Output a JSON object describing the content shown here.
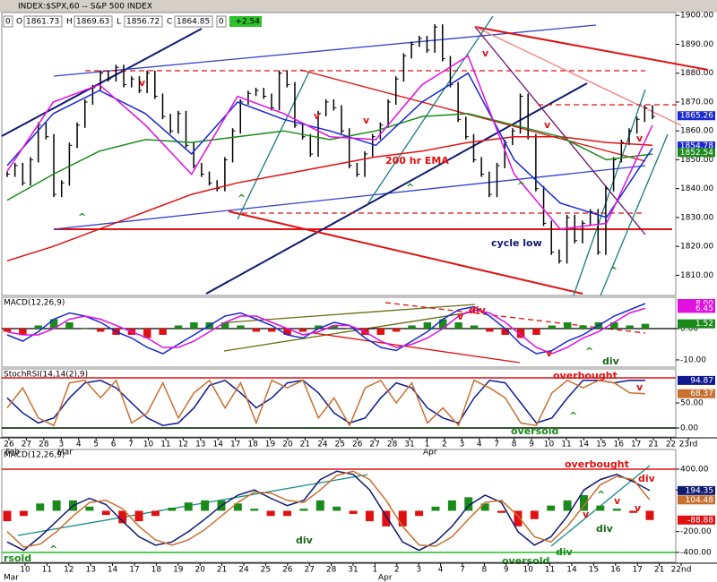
{
  "header": {
    "symbol": "INDEX:$SPX,60 -- S&P 500 INDEX",
    "fields": [
      {
        "label": "O",
        "value": "1861.73"
      },
      {
        "label": "H",
        "value": "1869.63"
      },
      {
        "label": "L",
        "value": "1856.72"
      },
      {
        "label": "C",
        "value": "1864.85"
      }
    ],
    "volume": "0",
    "change": "+2.54"
  },
  "chart_data": [
    {
      "type": "price",
      "ylim": [
        1803,
        1901
      ],
      "yticks": [
        {
          "value": 1900,
          "label": "1900.00"
        },
        {
          "value": 1890,
          "label": "1890.00"
        },
        {
          "value": 1880,
          "label": "1880.00"
        },
        {
          "value": 1870,
          "label": "1870.00"
        },
        {
          "value": 1860,
          "label": "1860.00"
        },
        {
          "value": 1850,
          "label": "1850.00"
        },
        {
          "value": 1840,
          "label": "1840.00"
        },
        {
          "value": 1830,
          "label": "1830.00"
        },
        {
          "value": 1820,
          "label": "1820.00"
        },
        {
          "value": 1810,
          "label": "1810.00"
        }
      ],
      "series": [
        {
          "style": "bars",
          "color": "#000000",
          "values": [
            1845,
            1848,
            1842,
            1850,
            1862,
            1858,
            1838,
            1842,
            1855,
            1862,
            1870,
            1875,
            1880,
            1878,
            1882,
            1876,
            1878,
            1874,
            1880,
            1872,
            1865,
            1860,
            1866,
            1855,
            1848,
            1845,
            1842,
            1840,
            1850,
            1860,
            1870,
            1873,
            1874,
            1872,
            1868,
            1880,
            1876,
            1862,
            1858,
            1852,
            1866,
            1870,
            1868,
            1860,
            1848,
            1845,
            1852,
            1858,
            1862,
            1870,
            1878,
            1886,
            1890,
            1892,
            1888,
            1896,
            1885,
            1876,
            1864,
            1858,
            1850,
            1845,
            1838,
            1848,
            1856,
            1860,
            1872,
            1858,
            1840,
            1828,
            1818,
            1815,
            1830,
            1822,
            1828,
            1832,
            1818,
            1840,
            1850,
            1856,
            1860,
            1864,
            1868,
            1865
          ]
        },
        {
          "style": "line",
          "color": "#e01010",
          "values": [
            1815,
            1820,
            1826,
            1832,
            1838,
            1842,
            1845,
            1848,
            1851,
            1853,
            1856,
            1858,
            1858,
            1856,
            1855
          ]
        },
        {
          "style": "line",
          "color": "#1a8a1a",
          "values": [
            1836,
            1845,
            1853,
            1857,
            1856,
            1858,
            1860,
            1857,
            1860,
            1865,
            1866,
            1862,
            1858,
            1850,
            1852
          ]
        },
        {
          "style": "line",
          "color": "#1a2ad0",
          "values": [
            1848,
            1866,
            1874,
            1866,
            1852,
            1870,
            1864,
            1860,
            1855,
            1870,
            1880,
            1850,
            1835,
            1830,
            1854
          ]
        },
        {
          "style": "line",
          "color": "#e010e0",
          "values": [
            1846,
            1870,
            1876,
            1862,
            1845,
            1872,
            1866,
            1858,
            1857,
            1876,
            1886,
            1845,
            1826,
            1828,
            1862
          ]
        }
      ],
      "markers": [
        {
          "value": 1865.26,
          "label": "1865.26",
          "color": "#1a2ad0"
        },
        {
          "value": 1854.78,
          "label": "1854.78",
          "color": "#1a2ad0"
        },
        {
          "value": 1852.54,
          "label": "1852.54",
          "color": "#1a8a1a"
        }
      ],
      "annotations": [
        "v",
        "v",
        "v",
        "v",
        "v",
        "v",
        "^",
        "^",
        "^",
        "^",
        "^",
        "200 hr EMA",
        "cycle low"
      ]
    },
    {
      "type": "macd",
      "title": "MACD(12,26,9)",
      "ylim": [
        -12.3,
        10
      ],
      "yticks": [
        {
          "value": 0,
          "label": "0.00"
        },
        {
          "value": -10,
          "label": "-10.00"
        }
      ],
      "up_color": "#1a8a1a",
      "down_color": "#e01010",
      "series": [
        {
          "style": "histogram",
          "values": [
            -1,
            -2,
            1,
            3,
            2,
            0,
            -1,
            -2,
            -2,
            -3,
            -2,
            1,
            2,
            2,
            2,
            1,
            -1,
            -1,
            -2,
            -1,
            1,
            1,
            0,
            -2,
            -2,
            -1,
            1,
            2,
            3,
            2,
            1,
            -1,
            -2,
            -3,
            -2,
            1,
            2,
            1,
            2,
            2,
            1,
            1.52
          ]
        },
        {
          "style": "line",
          "color": "#1a2ad0",
          "values": [
            -2,
            -4,
            -1,
            3,
            5,
            4,
            2,
            -1,
            -3,
            -6,
            -8,
            -5,
            -2,
            1,
            4,
            5,
            3,
            1,
            -2,
            -3,
            0,
            2,
            1,
            -3,
            -6,
            -7,
            -4,
            -1,
            3,
            6,
            7,
            4,
            0,
            -5,
            -8,
            -7,
            -4,
            -2,
            1,
            4,
            6,
            8
          ]
        },
        {
          "style": "line",
          "color": "#e010e0",
          "values": [
            -1,
            -2,
            -2,
            0,
            3,
            4,
            3,
            1,
            -1,
            -3,
            -6,
            -6,
            -4,
            -1,
            2,
            4,
            4,
            2,
            0,
            -2,
            -1,
            1,
            1,
            -1,
            -4,
            -6,
            -5,
            -3,
            0,
            4,
            6,
            5,
            2,
            -2,
            -6,
            -8,
            -6,
            -3,
            -1,
            2,
            5,
            6.45
          ]
        }
      ],
      "markers": [
        {
          "value": 8,
          "label": "8.00",
          "color": "#e010e0"
        },
        {
          "value": 6.45,
          "label": "6.45",
          "color": "#e010e0"
        },
        {
          "value": 1.52,
          "label": "1.52",
          "color": "#1a8a1a"
        }
      ],
      "annotations": [
        "div",
        "v",
        "v",
        "^",
        "div"
      ]
    },
    {
      "type": "stochrsi",
      "title": "StochRSI(14,14(2),9)",
      "ylim": [
        -17.9,
        117.9
      ],
      "yticks": [
        {
          "value": 50,
          "label": "50.00"
        },
        {
          "value": 0,
          "label": "0.00"
        }
      ],
      "overbought_level": 100,
      "oversold_level": 0,
      "series": [
        {
          "style": "line",
          "color": "#101a90",
          "values": [
            60,
            30,
            10,
            20,
            60,
            90,
            95,
            80,
            50,
            20,
            5,
            10,
            40,
            85,
            95,
            70,
            40,
            60,
            90,
            95,
            70,
            30,
            10,
            20,
            60,
            90,
            80,
            40,
            20,
            10,
            60,
            95,
            90,
            50,
            10,
            20,
            60,
            95,
            95,
            90,
            95,
            94.87
          ]
        },
        {
          "style": "line",
          "color": "#c87030",
          "values": [
            40,
            80,
            20,
            5,
            90,
            95,
            60,
            95,
            10,
            30,
            90,
            20,
            70,
            95,
            40,
            90,
            10,
            95,
            80,
            95,
            20,
            60,
            5,
            80,
            95,
            50,
            90,
            10,
            40,
            5,
            95,
            80,
            60,
            10,
            5,
            70,
            95,
            80,
            95,
            90,
            70,
            68.37
          ]
        }
      ],
      "markers": [
        {
          "value": 94.87,
          "label": "94.87",
          "color": "#101a90"
        },
        {
          "value": 68.37,
          "label": "68.37",
          "color": "#c87030"
        }
      ],
      "annotations": [
        "overbought",
        "oversold",
        "^",
        "v"
      ],
      "xlabels": [
        "26",
        "27",
        "28",
        "3",
        "4",
        "5",
        "6",
        "7",
        "10",
        "11",
        "12",
        "13",
        "14",
        "17",
        "18",
        "19",
        "20",
        "21",
        "24",
        "25",
        "26",
        "27",
        "28",
        "31",
        "1",
        "2",
        "3",
        "4",
        "7",
        "8",
        "9",
        "10",
        "11",
        "14",
        "15",
        "16",
        "17",
        "21",
        "22",
        "23rd"
      ],
      "months": [
        "Feb",
        "Mar",
        "Apr"
      ]
    },
    {
      "type": "macd",
      "title": "MACD(12,26,9)",
      "ylim": [
        -495,
        589
      ],
      "yticks": [
        {
          "value": 400,
          "label": "400.00"
        },
        {
          "value": 200,
          "label": "200.00"
        },
        {
          "value": -200,
          "label": "-200.00"
        },
        {
          "value": -400,
          "label": "-400.00"
        }
      ],
      "up_color": "#1a8a1a",
      "down_color": "#e01010",
      "overbought_level": 400,
      "oversold_level": -400,
      "series": [
        {
          "style": "histogram",
          "values": [
            -100,
            -50,
            70,
            100,
            100,
            40,
            -40,
            -120,
            -100,
            -50,
            30,
            80,
            100,
            100,
            70,
            20,
            -50,
            -50,
            20,
            100,
            40,
            -30,
            -100,
            -150,
            -150,
            -50,
            40,
            100,
            130,
            70,
            -20,
            -150,
            -80,
            50,
            100,
            150,
            50,
            20,
            -20,
            -88.88
          ]
        },
        {
          "style": "line",
          "color": "#101a70",
          "values": [
            -300,
            -380,
            -250,
            -100,
            50,
            120,
            60,
            -100,
            -250,
            -330,
            -300,
            -200,
            -80,
            50,
            150,
            200,
            120,
            50,
            100,
            300,
            380,
            350,
            200,
            -50,
            -300,
            -380,
            -300,
            -150,
            50,
            150,
            80,
            -200,
            -330,
            -250,
            -50,
            200,
            300,
            350,
            280,
            194.35
          ]
        },
        {
          "style": "line",
          "color": "#c87030",
          "values": [
            -200,
            -350,
            -320,
            -200,
            -50,
            80,
            100,
            20,
            -150,
            -280,
            -330,
            -280,
            -180,
            -50,
            80,
            180,
            170,
            100,
            80,
            200,
            340,
            380,
            300,
            100,
            -150,
            -330,
            -340,
            -250,
            -80,
            80,
            100,
            -50,
            -250,
            -300,
            -150,
            50,
            250,
            330,
            300,
            104.48
          ]
        }
      ],
      "markers": [
        {
          "value": 194.35,
          "label": "194.35",
          "color": "#101a70"
        },
        {
          "value": 104.48,
          "label": "104.48",
          "color": "#c87030"
        },
        {
          "value": -88.88,
          "label": "-88.88",
          "color": "#e01010"
        }
      ],
      "annotations": [
        "overbought",
        "oversold",
        "rsold",
        "div",
        "div",
        "div",
        "^",
        "^",
        "v",
        "v",
        "v",
        "div"
      ],
      "xlabels": [
        "10",
        "11",
        "12",
        "13",
        "14",
        "17",
        "18",
        "19",
        "20",
        "21",
        "24",
        "25",
        "26",
        "27",
        "28",
        "31",
        "1",
        "2",
        "3",
        "4",
        "7",
        "8",
        "9",
        "10",
        "11",
        "14",
        "15",
        "16",
        "17",
        "21",
        "22nd"
      ],
      "months": [
        "Mar",
        "Apr"
      ]
    }
  ]
}
